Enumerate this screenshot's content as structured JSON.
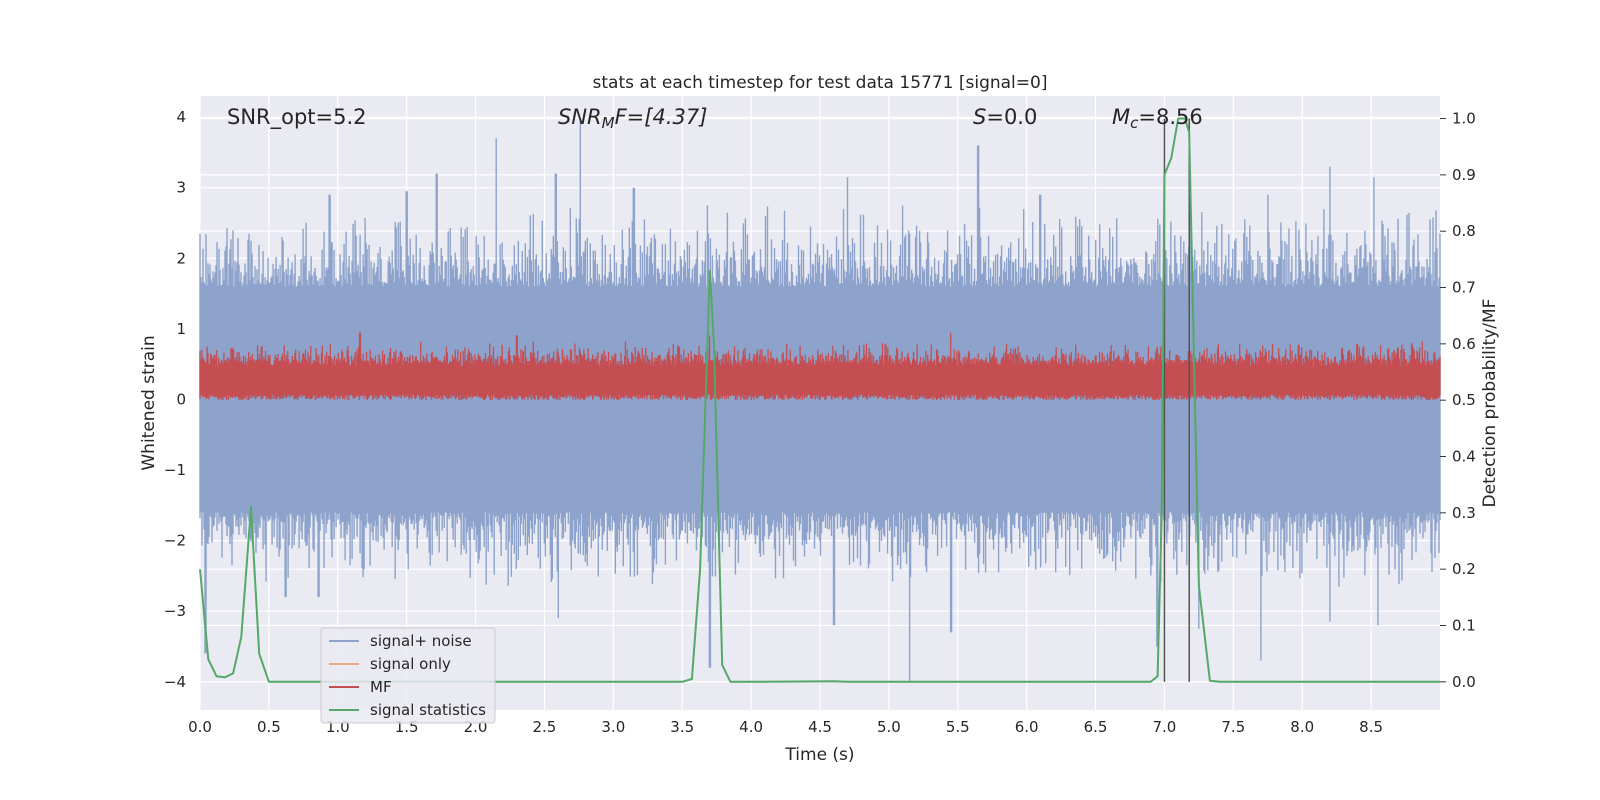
{
  "chart_data": {
    "type": "line",
    "title": "stats at each timestep for test data 15771 [signal=0]",
    "xlabel": "Time (s)",
    "ylabel": "Whitened strain",
    "ylabel_right": "Detection probability/MF",
    "xlim": [
      0.0,
      9.0
    ],
    "ylim": [
      -4.4,
      4.3
    ],
    "ylim_right": [
      -0.05,
      1.04
    ],
    "x_ticks": [
      "0.0",
      "0.5",
      "1.0",
      "1.5",
      "2.0",
      "2.5",
      "3.0",
      "3.5",
      "4.0",
      "4.5",
      "5.0",
      "5.5",
      "6.0",
      "6.5",
      "7.0",
      "7.5",
      "8.0",
      "8.5"
    ],
    "y_ticks": [
      "−4",
      "−3",
      "−2",
      "−1",
      "0",
      "1",
      "2",
      "3",
      "4"
    ],
    "y_ticks_right": [
      "0.0",
      "0.1",
      "0.2",
      "0.3",
      "0.4",
      "0.5",
      "0.6",
      "0.7",
      "0.8",
      "0.9",
      "1.0"
    ],
    "grid": true,
    "annotations": {
      "snr_opt": "SNR_opt=5.2",
      "snr_mf_prefix": "SNR",
      "snr_mf_sub": "M",
      "snr_mf_rest": "F=[4.37]",
      "s_var": "S",
      "s_rest": "=0.0",
      "mc_var": "M",
      "mc_sub": "c",
      "mc_rest": "=8.56"
    },
    "vlines": [
      7.0,
      7.18
    ],
    "legend": {
      "position": "lower-left",
      "entries": [
        {
          "label": "signal+ noise",
          "color": "#8ea3cc"
        },
        {
          "label": "signal only",
          "color": "#eea58a"
        },
        {
          "label": "MF",
          "color": "#c44e52"
        },
        {
          "label": "signal statistics",
          "color": "#55a868"
        }
      ]
    },
    "series": [
      {
        "name": "signal+ noise",
        "axis": "left",
        "color": "#8ea3cc",
        "noise_band_typical": [
          -1.6,
          1.6
        ],
        "peaks_high": [
          [
            0.0,
            2.35
          ],
          [
            0.94,
            2.9
          ],
          [
            1.5,
            2.95
          ],
          [
            1.72,
            3.2
          ],
          [
            2.15,
            3.7
          ],
          [
            2.58,
            3.2
          ],
          [
            2.76,
            3.95
          ],
          [
            3.15,
            3.0
          ],
          [
            4.7,
            3.15
          ],
          [
            5.65,
            3.6
          ],
          [
            6.1,
            2.9
          ],
          [
            7.75,
            2.9
          ],
          [
            8.2,
            3.3
          ],
          [
            8.52,
            3.15
          ],
          [
            9.0,
            2.35
          ]
        ],
        "peaks_low": [
          [
            0.04,
            -3.6
          ],
          [
            0.62,
            -2.8
          ],
          [
            0.86,
            -2.8
          ],
          [
            2.6,
            -3.1
          ],
          [
            3.7,
            -3.8
          ],
          [
            4.6,
            -3.2
          ],
          [
            5.15,
            -4.0
          ],
          [
            5.45,
            -3.3
          ],
          [
            6.95,
            -3.5
          ],
          [
            7.25,
            -3.25
          ],
          [
            7.7,
            -3.7
          ],
          [
            8.2,
            -3.15
          ],
          [
            8.55,
            -3.2
          ]
        ]
      },
      {
        "name": "MF",
        "axis": "right",
        "color": "#c44e52",
        "typical_range": [
          0.5,
          0.57
        ],
        "peaks": [
          [
            1.16,
            0.62
          ],
          [
            2.3,
            0.615
          ],
          [
            3.7,
            0.615
          ],
          [
            5.45,
            0.62
          ],
          [
            8.4,
            0.6
          ]
        ]
      },
      {
        "name": "signal statistics",
        "axis": "right",
        "color": "#55a868",
        "x": [
          0.0,
          0.06,
          0.12,
          0.18,
          0.24,
          0.3,
          0.37,
          0.43,
          0.5,
          0.6,
          3.5,
          3.57,
          3.63,
          3.7,
          3.73,
          3.79,
          3.85,
          3.95,
          4.6,
          4.7,
          6.9,
          6.95,
          6.98,
          7.0,
          7.05,
          7.1,
          7.15,
          7.18,
          7.25,
          7.33,
          7.4,
          9.0
        ],
        "y": [
          0.2,
          0.04,
          0.01,
          0.008,
          0.015,
          0.08,
          0.31,
          0.05,
          0.0,
          0.0,
          0.0,
          0.005,
          0.2,
          0.73,
          0.6,
          0.03,
          0.0,
          0.0,
          0.001,
          0.0,
          0.0,
          0.01,
          0.3,
          0.9,
          0.93,
          1.0,
          1.0,
          0.975,
          0.17,
          0.002,
          0.0,
          0.0
        ]
      }
    ]
  }
}
